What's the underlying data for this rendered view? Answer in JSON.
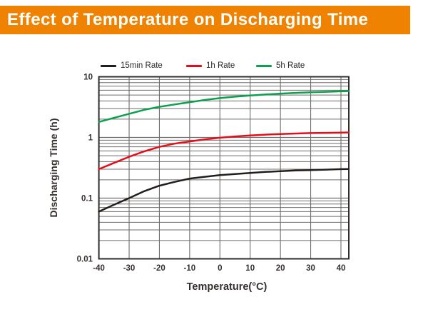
{
  "header": {
    "title": "Effect of Temperature on Discharging Time",
    "banner_color": "#EF8200",
    "title_color": "#FFFFFF"
  },
  "chart_data": {
    "type": "line",
    "title": "Effect of Temperature on Discharging Time",
    "xlabel": "Temperature(°C)",
    "ylabel": "Discharging Time (h)",
    "x_ticks": [
      -40,
      -30,
      -20,
      -10,
      0,
      10,
      20,
      30,
      40
    ],
    "x_range": [
      -40,
      42.6
    ],
    "y_scale": "log",
    "y_tick_labels": [
      "10",
      "1",
      "0.1",
      "0.01"
    ],
    "y_tick_values": [
      10,
      1,
      0.1,
      0.01
    ],
    "y_range": [
      0.01,
      10
    ],
    "grid": true,
    "legend_position": "top",
    "colors": {
      "grid": "#6F6C6B",
      "frame": "#332E2C",
      "tick_text": "#35302E"
    },
    "x": [
      -40,
      -35,
      -30,
      -25,
      -20,
      -15,
      -10,
      -5,
      0,
      5,
      10,
      15,
      20,
      25,
      30,
      35,
      40,
      42.6
    ],
    "series": [
      {
        "name": "15min Rate",
        "color": "#221E1C",
        "values": [
          0.06,
          0.078,
          0.1,
          0.13,
          0.16,
          0.185,
          0.21,
          0.225,
          0.24,
          0.25,
          0.26,
          0.27,
          0.278,
          0.285,
          0.29,
          0.295,
          0.3,
          0.302
        ]
      },
      {
        "name": "1h Rate",
        "color": "#E60D1A",
        "values": [
          0.3,
          0.38,
          0.48,
          0.59,
          0.7,
          0.79,
          0.86,
          0.93,
          0.99,
          1.04,
          1.08,
          1.11,
          1.14,
          1.16,
          1.18,
          1.19,
          1.2,
          1.21
        ]
      },
      {
        "name": "5h Rate",
        "color": "#0AA14E",
        "values": [
          1.8,
          2.1,
          2.45,
          2.85,
          3.2,
          3.5,
          3.8,
          4.15,
          4.45,
          4.7,
          4.9,
          5.1,
          5.28,
          5.42,
          5.55,
          5.65,
          5.75,
          5.8
        ]
      }
    ]
  }
}
